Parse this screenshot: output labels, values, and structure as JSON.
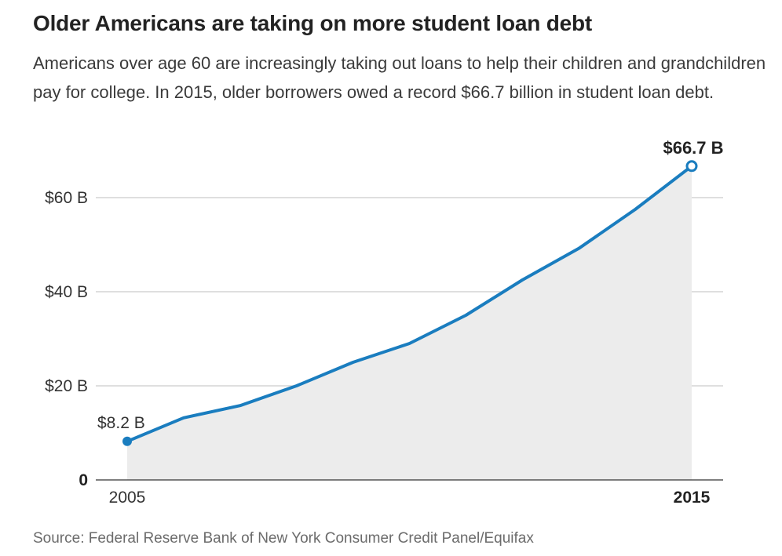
{
  "title": "Older Americans are taking on more student loan debt",
  "subtitle": "Americans over age 60 are increasingly taking out loans to help their children and grandchildren pay for college. In 2015, older borrowers owed a record $66.7 billion in student loan debt.",
  "source": "Source: Federal Reserve Bank of New York Consumer Credit Panel/Equifax",
  "colors": {
    "line": "#1a7dbf",
    "area": "#ececec",
    "grid": "#cccccc",
    "axis": "#555555"
  },
  "chart_data": {
    "type": "area",
    "x": [
      2005,
      2006,
      2007,
      2008,
      2009,
      2010,
      2011,
      2012,
      2013,
      2014,
      2015
    ],
    "values": [
      8.2,
      13.2,
      15.8,
      20.0,
      25.0,
      29.0,
      35.0,
      42.5,
      49.2,
      57.5,
      66.7
    ],
    "unit": "billions of dollars",
    "ylim": [
      0,
      70
    ],
    "y_ticks": [
      {
        "value": 0,
        "label": "0"
      },
      {
        "value": 20,
        "label": "$20 B"
      },
      {
        "value": 40,
        "label": "$40 B"
      },
      {
        "value": 60,
        "label": "$60 B"
      }
    ],
    "x_ticks": [
      {
        "value": 2005,
        "label": "2005"
      },
      {
        "value": 2015,
        "label": "2015"
      }
    ],
    "start_label": "$8.2 B",
    "end_label": "$66.7 B",
    "grid": true
  }
}
